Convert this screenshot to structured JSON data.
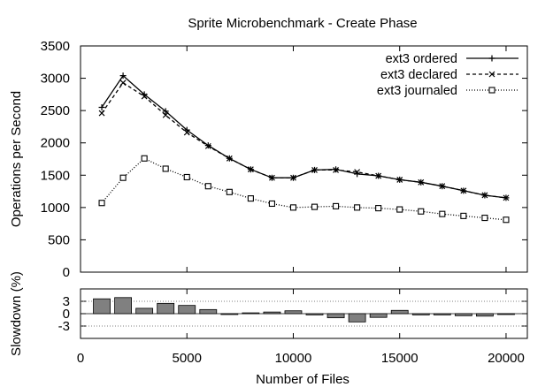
{
  "chart_data": [
    {
      "type": "line",
      "title": "Sprite Microbenchmark - Create Phase",
      "xlabel": "",
      "ylabel": "Operations per Second",
      "xlim": [
        0,
        21000
      ],
      "ylim": [
        0,
        3500
      ],
      "yticks": [
        0,
        500,
        1000,
        1500,
        2000,
        2500,
        3000,
        3500
      ],
      "grid": false,
      "legend_position": "top-right",
      "x": [
        1000,
        2000,
        3000,
        4000,
        5000,
        6000,
        7000,
        8000,
        9000,
        10000,
        11000,
        12000,
        13000,
        14000,
        15000,
        16000,
        17000,
        18000,
        19000,
        20000
      ],
      "series": [
        {
          "name": "ext3 ordered",
          "marker": "plus",
          "line_style": "solid",
          "values": [
            2550,
            3040,
            2750,
            2490,
            2200,
            1960,
            1760,
            1590,
            1460,
            1460,
            1580,
            1590,
            1520,
            1490,
            1430,
            1390,
            1330,
            1260,
            1190,
            1150
          ]
        },
        {
          "name": "ext3 declared",
          "marker": "cross",
          "line_style": "dashed",
          "values": [
            2460,
            2930,
            2720,
            2430,
            2160,
            1950,
            1760,
            1590,
            1460,
            1460,
            1580,
            1580,
            1550,
            1490,
            1430,
            1390,
            1330,
            1260,
            1190,
            1150
          ]
        },
        {
          "name": "ext3 journaled",
          "marker": "square",
          "line_style": "dotted",
          "values": [
            1070,
            1460,
            1760,
            1600,
            1470,
            1330,
            1240,
            1140,
            1060,
            1000,
            1010,
            1020,
            1000,
            990,
            970,
            940,
            900,
            870,
            840,
            810
          ]
        }
      ]
    },
    {
      "type": "bar",
      "title": "",
      "xlabel": "Number of Files",
      "ylabel": "Slowdown (%)",
      "xlim": [
        0,
        21000
      ],
      "xticks": [
        0,
        5000,
        10000,
        15000,
        20000
      ],
      "ylim": [
        -6,
        6
      ],
      "yticks": [
        -3,
        0,
        3
      ],
      "reference_lines": [
        3,
        -3
      ],
      "bar_color": "#808080",
      "x": [
        1000,
        2000,
        3000,
        4000,
        5000,
        6000,
        7000,
        8000,
        9000,
        10000,
        11000,
        12000,
        13000,
        14000,
        15000,
        16000,
        17000,
        18000,
        19000,
        20000
      ],
      "values": [
        3.6,
        3.9,
        1.3,
        2.5,
        2.0,
        1.0,
        0.0,
        0.2,
        0.4,
        0.7,
        -0.3,
        -1.0,
        -2.0,
        -0.9,
        0.8,
        -0.3,
        -0.3,
        -0.5,
        -0.6,
        0.0
      ]
    }
  ]
}
